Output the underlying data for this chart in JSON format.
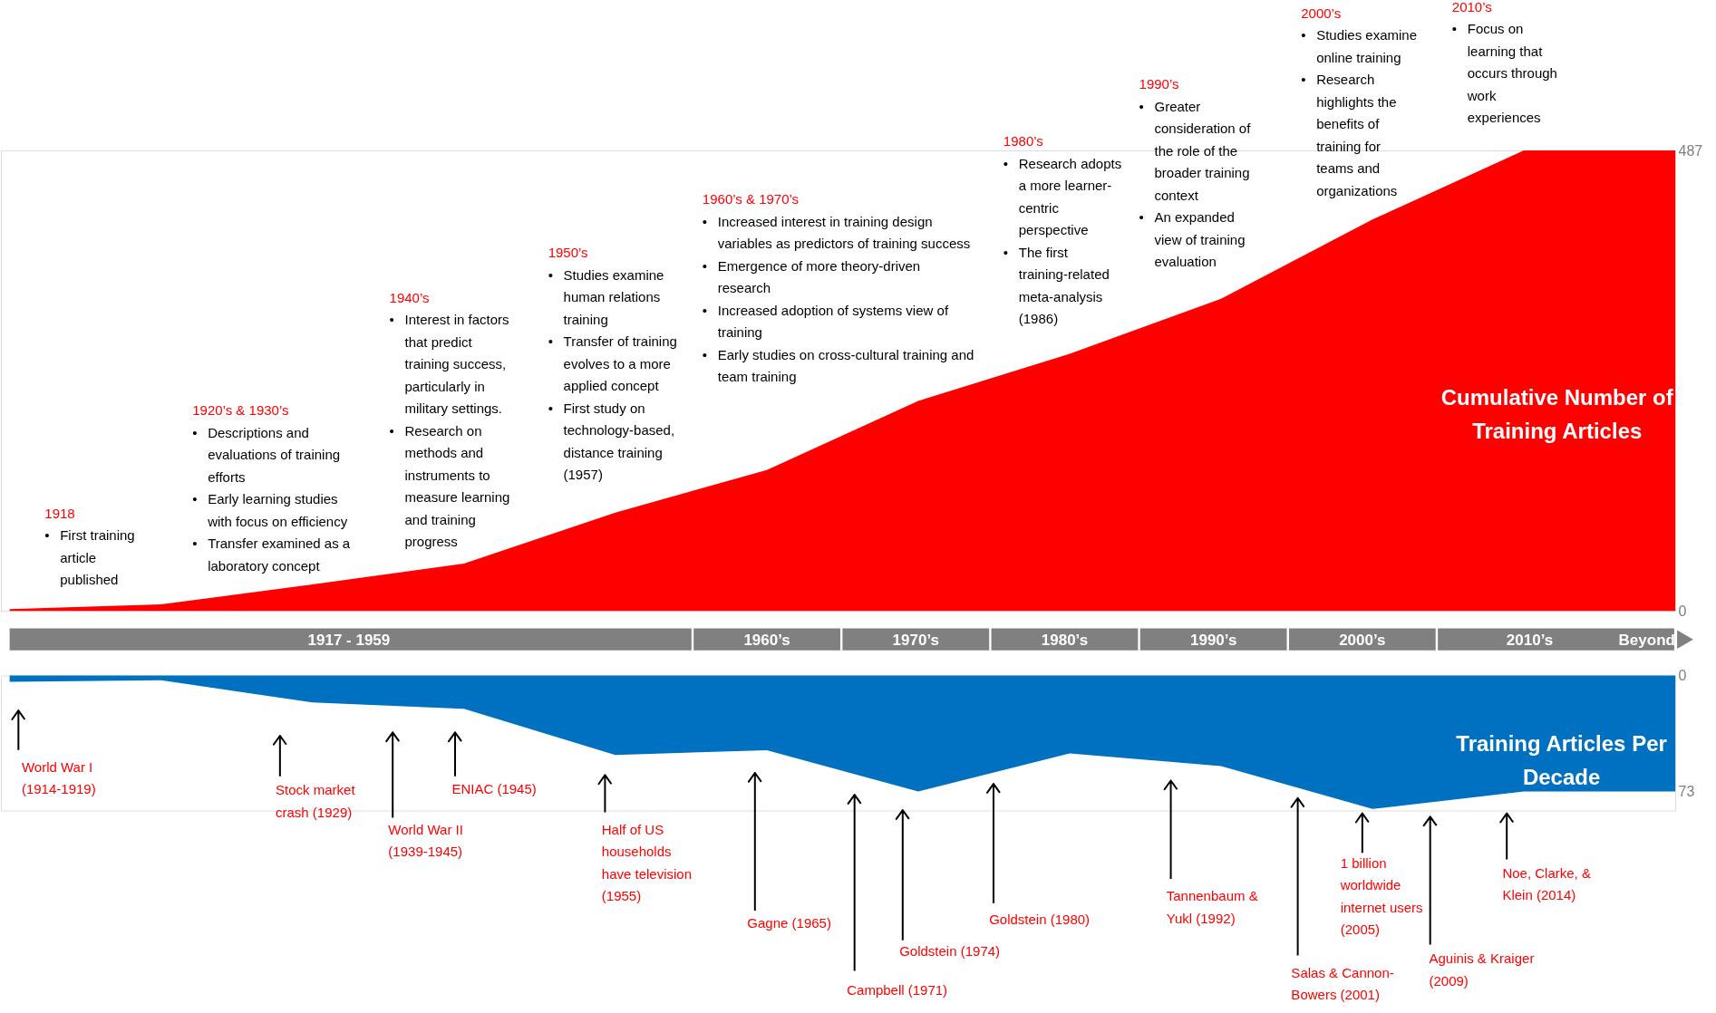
{
  "chart_data": [
    {
      "type": "area",
      "categories": [
        null,
        null,
        null,
        null,
        null,
        null,
        null,
        null,
        null,
        null,
        null,
        null
      ],
      "series": [
        {
          "name": "Cumulative Number of Training Articles",
          "color": "#ff0000",
          "values": [
            2,
            7,
            28,
            50,
            104,
            149,
            222,
            272,
            330,
            414,
            487,
            487
          ]
        }
      ],
      "ylim": [
        0,
        487
      ],
      "yticks": [
        0,
        487
      ],
      "tick_labels": "y",
      "annotations": [
        "1918\n• First training\narticle\npublished",
        "1920’s & 1930’s\n• Descriptions and\nevaluations of training\nefforts\n• Early learning studies\nwith focus on efficiency\n• Transfer examined as a\nlaboratory concept",
        "1940’s\n• Interest in factors\nthat predict\ntraining success,\nparticularly in\nmilitary settings.\n• Research on\nmethods and\ninstruments to\nmeasure learning\nand training\nprogress",
        "1950’s\n• Studies examine\nhuman relations\ntraining\n• Transfer of training\nevolves to a more\napplied concept\n• First study on\ntechnology-based,\ndistance training\n(1957)",
        "1960’s & 1970’s\n• Increased interest in training design\nvariables as predictors of training success\n• Emergence of more theory-driven\nresearch\n• Increased adoption of systems view of\ntraining\n• Early studies on cross-cultural training and\nteam training",
        "1980’s\n• Research adopts\na more learner-\ncentric\nperspective\n• The first\ntraining-related\nmeta-analysis\n(1986)",
        "1990’s\n• Greater\nconsideration of\nthe role of the\nbroader training\ncontext\n• An expanded\nview of training\nevaluation",
        "2000’s\n• Studies examine\nonline training\n• Research\nhighlights the\nbenefits of\ntraining for\nteams and\norganizations",
        "2010’s\n• Focus on\nlearning that\noccurs through\nwork\nexperiences",
        "1917 - 1959",
        "1960’s",
        "1970’s",
        "1980’s",
        "1990’s",
        "2000’s",
        "2010’s",
        "Beyond"
      ]
    },
    {
      "type": "area",
      "categories": [
        null,
        null,
        null,
        null,
        null,
        null,
        null,
        null,
        null,
        null,
        null,
        null
      ],
      "series": [
        {
          "name": "Training Articles Per Decade",
          "color": "#0070c0",
          "values": [
            4,
            3,
            17,
            21,
            50,
            47,
            73,
            49,
            57,
            84,
            73,
            73
          ]
        }
      ],
      "ylim": [
        85,
        0
      ],
      "yticks": [
        0,
        73
      ],
      "tick_labels": "y",
      "annotations": [
        "World War I\n(1914-1919)",
        "Stock market\ncrash (1929)",
        "World War II\n(1939-1945)",
        "ENIAC (1945)",
        "Half of US\nhouseholds\nhave television\n(1955)",
        "Gagne (1965)",
        "Campbell (1971)",
        "Goldstein (1974)",
        "Goldstein (1980)",
        "Tannenbaum &\nYukl (1992)",
        "Salas & Cannon-\nBowers (2001)",
        "1 billion\nworldwide\ninternet users\n(2005)",
        "Aguinis & Kraiger\n(2009)",
        "Noe, Clarke, &\nKlein (2014)"
      ]
    }
  ]
}
